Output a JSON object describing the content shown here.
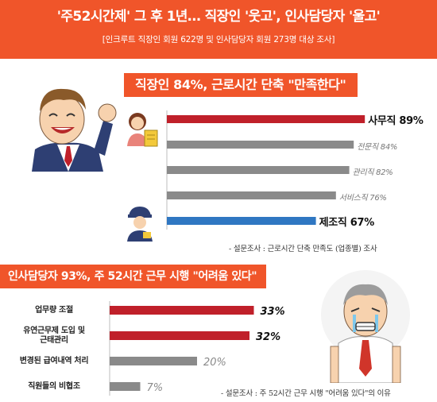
{
  "header": {
    "title": "'주52시간제' 그 후 1년… 직장인 '웃고', 인사담당자 '울고'",
    "subtitle": "[인크루트 직장인 회원 622명 및 인사담당자 회원 273명 대상 조사]"
  },
  "colors": {
    "accent": "#f0552a",
    "red": "#c0202a",
    "gray": "#8a8a8a",
    "blue": "#2f77c2"
  },
  "chart_data": [
    {
      "type": "bar",
      "title": "직장인 84%, 근로시간 단축 \"만족한다\"",
      "note": "- 설문조사 : 근로시간 단축 만족도 (업종별) 조사",
      "categories": [
        "사무직",
        "전문직",
        "관리직",
        "서비스직",
        "제조직"
      ],
      "values": [
        89,
        84,
        82,
        76,
        67
      ],
      "labels": [
        "사무직 89%",
        "전문직 84%",
        "관리직 82%",
        "서비스직 76%",
        "제조직 67%"
      ],
      "bar_colors": [
        "#c0202a",
        "#8a8a8a",
        "#8a8a8a",
        "#8a8a8a",
        "#2f77c2"
      ],
      "emphasis": [
        true,
        false,
        false,
        false,
        true
      ],
      "unit": "%"
    },
    {
      "type": "bar",
      "title": "인사담당자 93%, 주 52시간 근무 시행 \"어려움 있다\"",
      "note": "- 설문조사 : 주 52시간 근무 시행 \"어려움 있다\"의 이유",
      "categories": [
        "업무량 조절",
        "유연근무제 도입 및\n근태관리",
        "변경된 급여내역 처리",
        "직원들의 비협조"
      ],
      "values": [
        33,
        32,
        20,
        7
      ],
      "labels": [
        "33%",
        "32%",
        "20%",
        "7%"
      ],
      "bar_colors": [
        "#c0202a",
        "#c0202a",
        "#8a8a8a",
        "#8a8a8a"
      ],
      "emphasis": [
        true,
        true,
        false,
        false
      ],
      "unit": "%"
    }
  ]
}
